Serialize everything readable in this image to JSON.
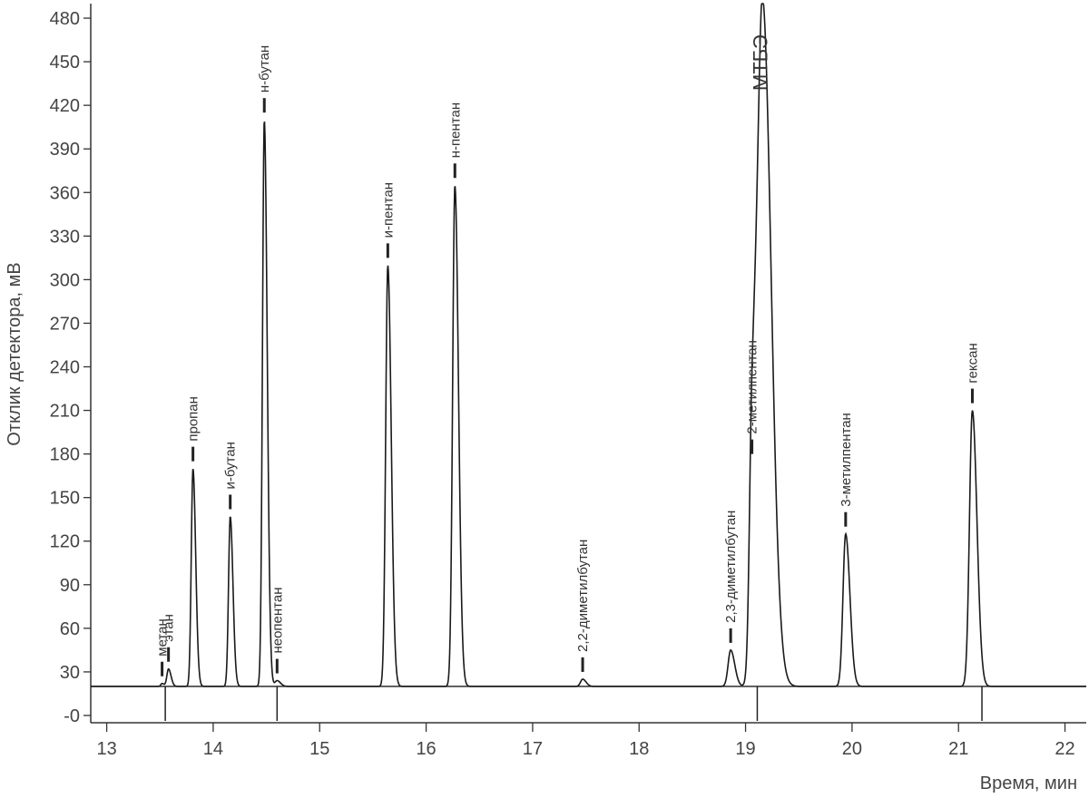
{
  "chart_data": {
    "type": "line",
    "title": "",
    "xlabel": "Время, мин",
    "ylabel": "Отклик детектора, мВ",
    "xlim": [
      12.85,
      22.2
    ],
    "ylim": [
      -5,
      490
    ],
    "xticks": [
      13,
      14,
      15,
      16,
      17,
      18,
      19,
      20,
      21,
      22
    ],
    "xtick_labels": [
      "13",
      "14",
      "15",
      "16",
      "17",
      "18",
      "19",
      "20",
      "21",
      "22"
    ],
    "yticks": [
      0,
      30,
      60,
      90,
      120,
      150,
      180,
      210,
      240,
      270,
      300,
      330,
      360,
      390,
      420,
      450,
      480
    ],
    "ytick_labels": [
      "-0",
      "30",
      "60",
      "90",
      "120",
      "150",
      "180",
      "210",
      "240",
      "270",
      "300",
      "330",
      "360",
      "390",
      "420",
      "450",
      "480"
    ],
    "baseline": 20,
    "line_color": "#1a1a1a",
    "peaks": [
      {
        "label": "метан",
        "rt": 13.52,
        "height": 22,
        "width": 0.012
      },
      {
        "label": "этан",
        "rt": 13.58,
        "height": 32,
        "width": 0.015
      },
      {
        "label": "пропан",
        "rt": 13.81,
        "height": 170,
        "width": 0.016
      },
      {
        "label": "и-бутан",
        "rt": 14.16,
        "height": 137,
        "width": 0.016
      },
      {
        "label": "н-бутан",
        "rt": 14.48,
        "height": 410,
        "width": 0.017
      },
      {
        "label": "неопентан",
        "rt": 14.6,
        "height": 24,
        "width": 0.02
      },
      {
        "label": "и-пентан",
        "rt": 15.64,
        "height": 310,
        "width": 0.02
      },
      {
        "label": "н-пентан",
        "rt": 16.27,
        "height": 365,
        "width": 0.021
      },
      {
        "label": "2,2-диметилбутан",
        "rt": 17.47,
        "height": 25,
        "width": 0.02
      },
      {
        "label": "2,3-диметилбутан",
        "rt": 18.86,
        "height": 45,
        "width": 0.024
      },
      {
        "label": "2-метилпентан",
        "rt": 19.06,
        "height": 175,
        "width": 0.024
      },
      {
        "label": "МТБЭ",
        "rt": 19.16,
        "height": 490,
        "width": 0.05
      },
      {
        "label": "3-метилпентан",
        "rt": 19.94,
        "height": 125,
        "width": 0.025
      },
      {
        "label": "гексан",
        "rt": 21.13,
        "height": 210,
        "width": 0.027
      }
    ]
  }
}
